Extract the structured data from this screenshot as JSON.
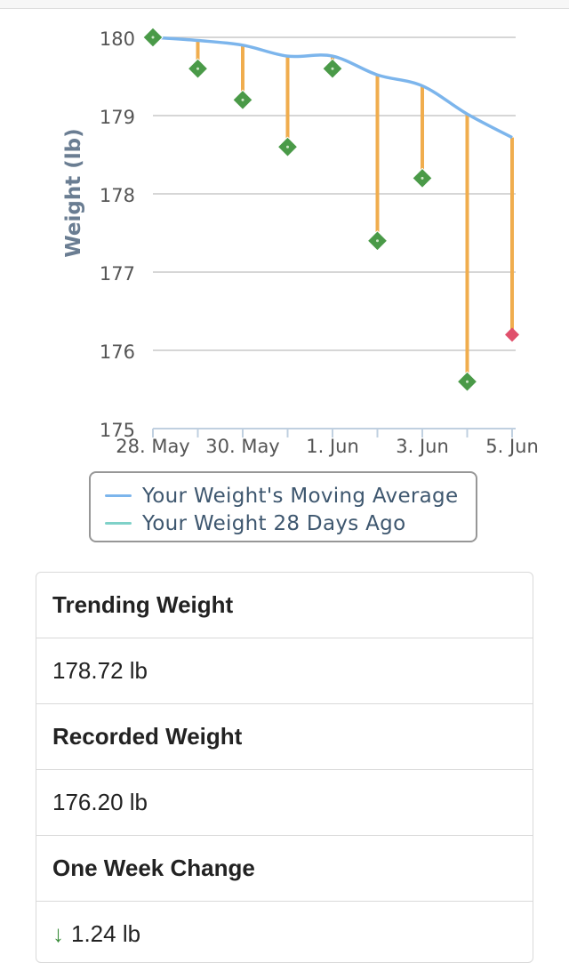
{
  "chart_data": {
    "type": "line",
    "ylabel": "Weight (lb)",
    "ylim": [
      175,
      180
    ],
    "yticks": [
      175,
      176,
      177,
      178,
      179,
      180
    ],
    "x_tick_labels": [
      "28. May",
      "30. May",
      "1. Jun",
      "3. Jun",
      "5. Jun"
    ],
    "x_tick_days": [
      0,
      2,
      4,
      6,
      8
    ],
    "grid": true,
    "legend_position": "bottom",
    "series": [
      {
        "name": "Your Weight's Moving Average",
        "color": "#7cb5ec",
        "x": [
          0,
          1,
          2,
          3,
          4,
          5,
          6,
          7,
          8
        ],
        "values": [
          180.0,
          179.96,
          179.9,
          179.76,
          179.76,
          179.52,
          179.38,
          179.02,
          178.72
        ]
      },
      {
        "name": "Your Weight 28 Days Ago",
        "color": "#7fd1c8",
        "x": [],
        "values": []
      }
    ],
    "recorded_weights": {
      "x": [
        0,
        1,
        2,
        3,
        4,
        5,
        6,
        7,
        8
      ],
      "values": [
        180.0,
        179.6,
        179.2,
        178.6,
        179.6,
        177.4,
        178.2,
        175.6,
        176.2
      ],
      "marker_color": "#4a9a48",
      "last_marker_color": "#e0506c",
      "drop_line_color": "#f0ad4e"
    }
  },
  "stats": {
    "trending_label": "Trending Weight",
    "trending_value": "178.72 lb",
    "recorded_label": "Recorded Weight",
    "recorded_value": "176.20 lb",
    "week_change_label": "One Week Change",
    "week_change_arrow": "↓",
    "week_change_value": "1.24 lb"
  }
}
